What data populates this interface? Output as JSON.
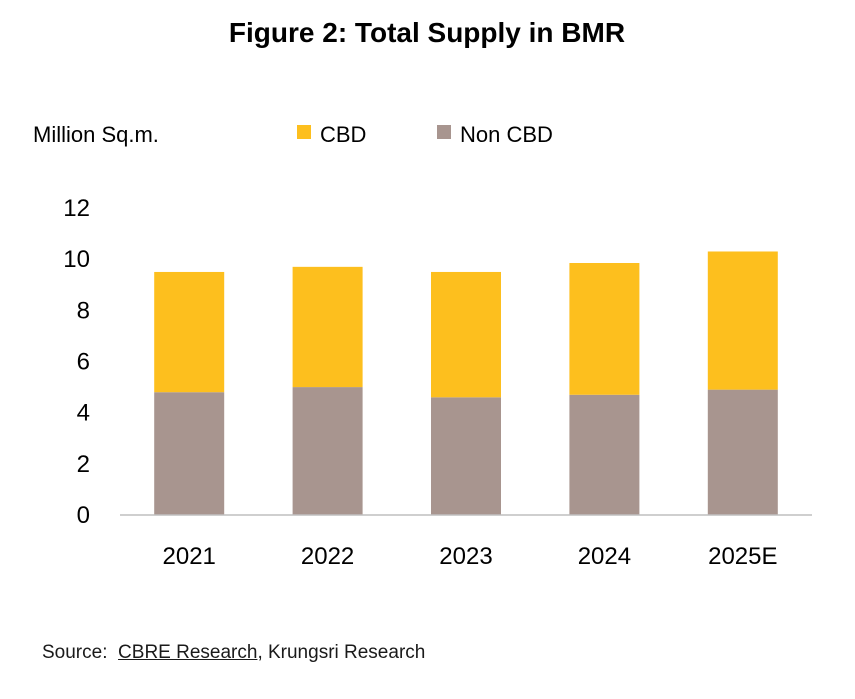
{
  "chart_data": {
    "type": "bar",
    "stacked": true,
    "title": "Figure 2: Total Supply in BMR",
    "ylabel": "Million Sq.m.",
    "xlabel": "",
    "categories": [
      "2021",
      "2022",
      "2023",
      "2024",
      "2025E"
    ],
    "series": [
      {
        "name": "Non CBD",
        "color": "#a8958f",
        "values": [
          4.8,
          5.0,
          4.6,
          4.7,
          4.9
        ]
      },
      {
        "name": "CBD",
        "color": "#fdbf1e",
        "values": [
          4.7,
          4.7,
          4.9,
          5.15,
          5.4
        ]
      }
    ],
    "legend_order": [
      "CBD",
      "Non CBD"
    ],
    "ylim": [
      0,
      12
    ],
    "yticks": [
      "0",
      "2",
      "4",
      "6",
      "8",
      "10",
      "12"
    ],
    "grid": false,
    "legend_position": "top"
  },
  "source": {
    "prefix": "Source:",
    "link_text": "CBRE Research",
    "rest": ", Krungsri Research"
  }
}
